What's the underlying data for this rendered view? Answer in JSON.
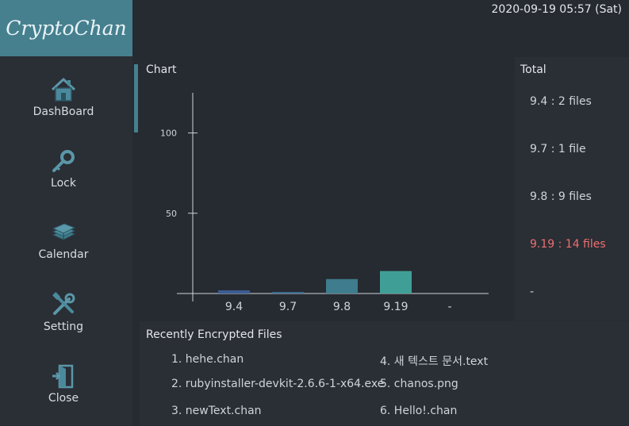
{
  "app": {
    "logo": "CryptoChan",
    "datetime": "2020-09-19 05:57 (Sat)"
  },
  "sidebar": {
    "items": [
      {
        "label": "DashBoard",
        "icon": "house-icon"
      },
      {
        "label": "Lock",
        "icon": "key-icon"
      },
      {
        "label": "Calendar",
        "icon": "calendar-icon"
      },
      {
        "label": "Setting",
        "icon": "tools-icon"
      },
      {
        "label": "Close",
        "icon": "exit-door-icon"
      }
    ]
  },
  "chart_panel": {
    "title": "Chart"
  },
  "chart_data": {
    "type": "bar",
    "categories": [
      "9.4",
      "9.7",
      "9.8",
      "9.19",
      "-"
    ],
    "values": [
      2,
      1,
      9,
      14,
      null
    ],
    "ylim": [
      0,
      125
    ],
    "yticks": [
      50,
      100
    ],
    "colors": [
      "#3c5c93",
      "#3a6b8e",
      "#3f7c8d",
      "#3f9f96"
    ],
    "grid": false
  },
  "total": {
    "title": "Total",
    "items": [
      {
        "label": "9.4 : 2 files",
        "highlight": false
      },
      {
        "label": "9.7 : 1 file",
        "highlight": false
      },
      {
        "label": "9.8 : 9 files",
        "highlight": false
      },
      {
        "label": "9.19 : 14 files",
        "highlight": true
      },
      {
        "label": "-",
        "highlight": false
      }
    ]
  },
  "recent_files": {
    "title": "Recently Encrypted Files",
    "items": [
      "1. hehe.chan",
      "2. rubyinstaller-devkit-2.6.6-1-x64.exe",
      "3. newText.chan",
      "4. 새 텍스트 문서.text",
      "5. chanos.png",
      "6. Hello!.chan"
    ]
  },
  "theme": {
    "accent": "#46808f",
    "highlight": "#ee6f6f",
    "background": "#262a31"
  }
}
